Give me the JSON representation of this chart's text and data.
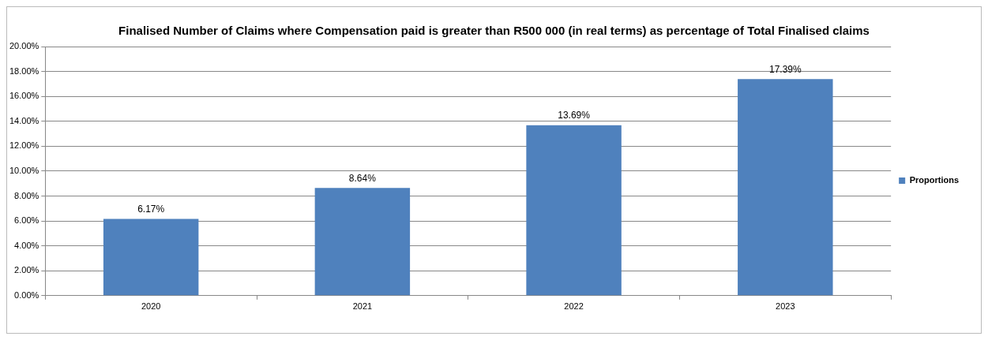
{
  "chart_data": {
    "type": "bar",
    "title": "Finalised Number of Claims where Compensation paid is greater than  R500 000 (in real terms) as percentage of Total Finalised claims",
    "categories": [
      "2020",
      "2021",
      "2022",
      "2023"
    ],
    "series": [
      {
        "name": "Proportions",
        "color": "#4f81bd",
        "values": [
          6.17,
          8.64,
          13.69,
          17.39
        ],
        "value_labels": [
          "6.17%",
          "8.64%",
          "13.69%",
          "17.39%"
        ]
      }
    ],
    "ylim": [
      0,
      20
    ],
    "yticks": [
      {
        "value": 0,
        "label": "0.00%"
      },
      {
        "value": 2,
        "label": "2.00%"
      },
      {
        "value": 4,
        "label": "4.00%"
      },
      {
        "value": 6,
        "label": "6.00%"
      },
      {
        "value": 8,
        "label": "8.00%"
      },
      {
        "value": 10,
        "label": "10.00%"
      },
      {
        "value": 12,
        "label": "12.00%"
      },
      {
        "value": 14,
        "label": "14.00%"
      },
      {
        "value": 16,
        "label": "16.00%"
      },
      {
        "value": 18,
        "label": "18.00%"
      },
      {
        "value": 20,
        "label": "20.00%"
      }
    ],
    "grid": "y",
    "legend": "right"
  }
}
